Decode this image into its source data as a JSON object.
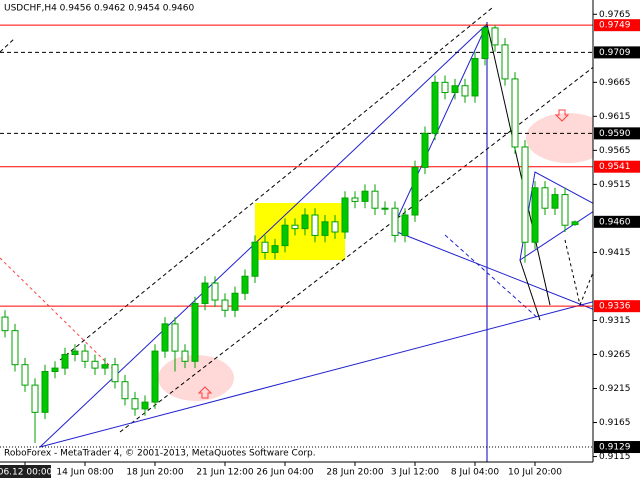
{
  "chart_data": {
    "type": "candlestick",
    "title": "USDCHF,H4  0.9456 0.9462 0.9454 0.9460",
    "footer": "RoboForex - MetaTrader 4, © 2001-2013, MetaQuotes Software Corp.",
    "categories": [
      null,
      null,
      "06.12 00:00",
      null,
      null,
      null,
      null,
      null,
      "14 Jun 08:00",
      null,
      null,
      null,
      null,
      null,
      null,
      "18 Jun 20:00",
      null,
      null,
      null,
      null,
      null,
      null,
      "21 Jun 12:00",
      null,
      null,
      null,
      null,
      null,
      "26 Jun 04:00",
      null,
      null,
      null,
      null,
      null,
      null,
      "28 Jun 20:00",
      null,
      null,
      null,
      null,
      null,
      "3 Jul 12:00",
      null,
      null,
      null,
      null,
      null,
      "8 Jul 04:00",
      null,
      null,
      null,
      null,
      null,
      "10 Jul 20:00",
      null,
      null,
      null,
      null
    ],
    "open": [
      0.932,
      0.93,
      0.925,
      0.922,
      0.918,
      0.924,
      0.9245,
      0.9265,
      0.927,
      0.9255,
      0.9245,
      0.925,
      0.9225,
      0.92,
      0.9185,
      0.9195,
      0.927,
      0.931,
      0.927,
      0.9255,
      0.934,
      0.937,
      0.9345,
      0.933,
      0.9355,
      0.938,
      0.943,
      0.9415,
      0.9425,
      0.9455,
      0.945,
      0.947,
      0.944,
      0.946,
      0.9445,
      0.9495,
      0.949,
      0.9505,
      0.948,
      0.948,
      0.944,
      0.947,
      0.954,
      0.959,
      0.9665,
      0.965,
      0.966,
      0.9645,
      0.97,
      0.9745,
      0.972,
      0.967,
      0.957,
      0.943,
      0.951,
      0.948,
      0.95,
      0.9456
    ],
    "high": [
      0.933,
      0.931,
      0.926,
      0.923,
      0.925,
      0.9255,
      0.9275,
      0.928,
      0.928,
      0.9265,
      0.926,
      0.926,
      0.9235,
      0.921,
      0.9205,
      0.928,
      0.932,
      0.932,
      0.928,
      0.935,
      0.938,
      0.938,
      0.9355,
      0.9365,
      0.939,
      0.944,
      0.944,
      0.9435,
      0.9465,
      0.9465,
      0.948,
      0.948,
      0.947,
      0.947,
      0.9505,
      0.9505,
      0.9515,
      0.9515,
      0.949,
      0.949,
      0.948,
      0.955,
      0.96,
      0.9675,
      0.9675,
      0.967,
      0.967,
      0.971,
      0.9749,
      0.9749,
      0.973,
      0.968,
      0.958,
      0.952,
      0.952,
      0.951,
      0.951,
      0.9462
    ],
    "low": [
      0.929,
      0.924,
      0.921,
      0.9135,
      0.917,
      0.923,
      0.9235,
      0.9255,
      0.9245,
      0.9235,
      0.9235,
      0.9215,
      0.919,
      0.9175,
      0.9175,
      0.9185,
      0.926,
      0.924,
      0.9245,
      0.9245,
      0.933,
      0.9335,
      0.932,
      0.932,
      0.9345,
      0.937,
      0.9405,
      0.9405,
      0.9415,
      0.944,
      0.944,
      0.943,
      0.943,
      0.9435,
      0.9435,
      0.948,
      0.948,
      0.947,
      0.947,
      0.943,
      0.943,
      0.946,
      0.953,
      0.958,
      0.964,
      0.964,
      0.9635,
      0.9635,
      0.969,
      0.971,
      0.966,
      0.956,
      0.94,
      0.942,
      0.947,
      0.947,
      0.9445,
      0.9454
    ],
    "close": [
      0.93,
      0.925,
      0.922,
      0.918,
      0.924,
      0.9245,
      0.9265,
      0.927,
      0.9255,
      0.9245,
      0.925,
      0.9225,
      0.92,
      0.9185,
      0.9195,
      0.927,
      0.931,
      0.927,
      0.9255,
      0.934,
      0.937,
      0.9345,
      0.933,
      0.9355,
      0.938,
      0.943,
      0.9415,
      0.9425,
      0.9455,
      0.945,
      0.947,
      0.944,
      0.946,
      0.9445,
      0.9495,
      0.949,
      0.9505,
      0.948,
      0.948,
      0.944,
      0.947,
      0.954,
      0.959,
      0.9665,
      0.965,
      0.966,
      0.9645,
      0.97,
      0.9745,
      0.972,
      0.967,
      0.957,
      0.943,
      0.951,
      0.948,
      0.95,
      0.9455,
      0.946
    ],
    "ylim": [
      0.9107,
      0.9786
    ],
    "yticks": [
      0.9765,
      0.9665,
      0.9615,
      0.9565,
      0.9515,
      0.9415,
      0.9315,
      0.9265,
      0.9215,
      0.9165,
      0.9115
    ],
    "levels": [
      {
        "value": 0.9749,
        "color": "#ff0000",
        "style": "solid"
      },
      {
        "value": 0.9709,
        "color": "#000000",
        "style": "dashed"
      },
      {
        "value": 0.959,
        "label": "0.9590",
        "color": "#000000",
        "style": "dashed"
      },
      {
        "value": 0.9541,
        "color": "#ff0000",
        "style": "solid"
      },
      {
        "value": 0.946,
        "label": "0.9460",
        "color": "#000000",
        "style": "none"
      },
      {
        "value": 0.9336,
        "color": "#ff0000",
        "style": "solid"
      },
      {
        "value": 0.9129,
        "color": "#000000",
        "style": "dotted"
      }
    ],
    "up_color": "#00c800",
    "down_color": "#ffffff",
    "outline_color": "#00a000"
  }
}
